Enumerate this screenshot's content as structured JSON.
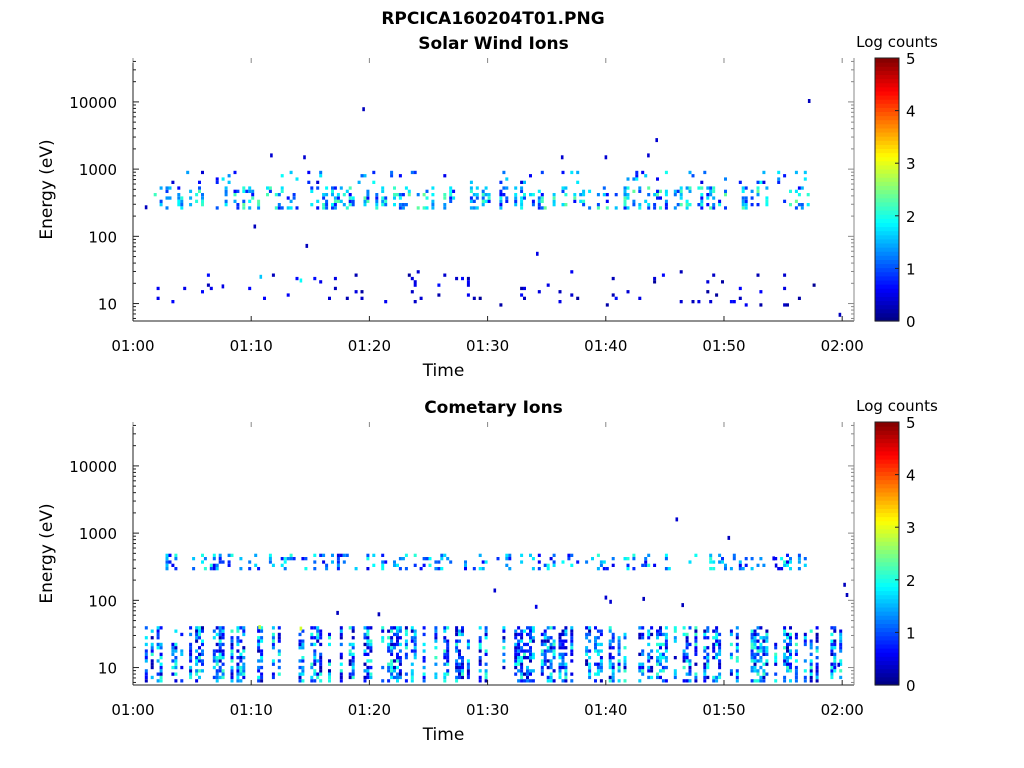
{
  "figure_title": "RPCICA160204T01.PNG",
  "colorbar": {
    "title": "Log counts",
    "ticks": [
      "0",
      "1",
      "2",
      "3",
      "4",
      "5"
    ]
  },
  "chart_data": [
    {
      "type": "heatmap",
      "title": "Solar Wind Ions",
      "xlabel": "Time",
      "ylabel": "Energy (eV)",
      "x_ticks": [
        "01:00",
        "01:10",
        "01:20",
        "01:30",
        "01:40",
        "01:50",
        "02:00"
      ],
      "y_ticks": [
        "10",
        "100",
        "1000",
        "10000"
      ],
      "y_scale": "log",
      "ylim": [
        5.5,
        45000
      ],
      "xlim_minutes": [
        0,
        61
      ],
      "color_range": [
        0,
        5
      ],
      "bands": [
        {
          "t0": 1.5,
          "t1": 58,
          "e_lo": 250,
          "e_hi": 500,
          "density": 0.45,
          "level": 1.5,
          "level_var": 0.9
        },
        {
          "t0": 2,
          "t1": 57,
          "e_lo": 600,
          "e_hi": 900,
          "density": 0.12,
          "level": 1.2,
          "level_var": 0.8
        },
        {
          "t0": 2,
          "t1": 58,
          "e_lo": 9,
          "e_hi": 30,
          "density": 0.06,
          "level": 0.4,
          "level_var": 0.3
        }
      ],
      "points": [
        {
          "t": 19.5,
          "e": 7800,
          "v": 0.3
        },
        {
          "t": 57.2,
          "e": 10300,
          "v": 0.3
        },
        {
          "t": 11.7,
          "e": 1600,
          "v": 0.4
        },
        {
          "t": 14.5,
          "e": 1500,
          "v": 0.4
        },
        {
          "t": 36.3,
          "e": 1500,
          "v": 0.4
        },
        {
          "t": 40,
          "e": 1500,
          "v": 0.4
        },
        {
          "t": 43.6,
          "e": 1600,
          "v": 0.4
        },
        {
          "t": 44.3,
          "e": 2700,
          "v": 0.4
        },
        {
          "t": 7.6,
          "e": 18,
          "v": 0.5
        },
        {
          "t": 10.8,
          "e": 25,
          "v": 1.6
        },
        {
          "t": 14.2,
          "e": 22,
          "v": 1.9
        },
        {
          "t": 34.2,
          "e": 55,
          "v": 0.5
        },
        {
          "t": 14.7,
          "e": 72,
          "v": 0.3
        },
        {
          "t": 10.3,
          "e": 140,
          "v": 0.3
        },
        {
          "t": 1.1,
          "e": 270,
          "v": 0.3
        },
        {
          "t": 59.8,
          "e": 6.8,
          "v": 0.3
        }
      ]
    },
    {
      "type": "heatmap",
      "title": "Cometary Ions",
      "xlabel": "Time",
      "ylabel": "Energy (eV)",
      "x_ticks": [
        "01:00",
        "01:10",
        "01:20",
        "01:30",
        "01:40",
        "01:50",
        "02:00"
      ],
      "y_ticks": [
        "10",
        "100",
        "1000",
        "10000"
      ],
      "y_scale": "log",
      "ylim": [
        5.5,
        45000
      ],
      "xlim_minutes": [
        0,
        61
      ],
      "color_range": [
        0,
        5
      ],
      "bands": [
        {
          "t0": 2,
          "t1": 57,
          "e_lo": 280,
          "e_hi": 480,
          "density": 0.35,
          "level": 1.3,
          "level_var": 0.8
        },
        {
          "t0": 1,
          "t1": 60,
          "e_lo": 6,
          "e_hi": 38,
          "density": 0.6,
          "level": 1.2,
          "level_var": 1.0
        }
      ],
      "points": [
        {
          "t": 46,
          "e": 1600,
          "v": 0.4
        },
        {
          "t": 50.4,
          "e": 850,
          "v": 0.3
        },
        {
          "t": 30.6,
          "e": 140,
          "v": 0.4
        },
        {
          "t": 40,
          "e": 110,
          "v": 0.4
        },
        {
          "t": 40.4,
          "e": 95,
          "v": 0.4
        },
        {
          "t": 43.2,
          "e": 105,
          "v": 0.3
        },
        {
          "t": 46.5,
          "e": 85,
          "v": 0.3
        },
        {
          "t": 17.3,
          "e": 65,
          "v": 0.3
        },
        {
          "t": 20.8,
          "e": 62,
          "v": 0.3
        },
        {
          "t": 34.1,
          "e": 80,
          "v": 0.5
        },
        {
          "t": 10.7,
          "e": 40,
          "v": 2.8
        },
        {
          "t": 14.2,
          "e": 38,
          "v": 2.9
        },
        {
          "t": 54.2,
          "e": 420,
          "v": 0.6
        },
        {
          "t": 54.4,
          "e": 330,
          "v": 0.5
        },
        {
          "t": 60.4,
          "e": 120,
          "v": 0.3
        },
        {
          "t": 60.2,
          "e": 170,
          "v": 0.3
        },
        {
          "t": 59.7,
          "e": 11,
          "v": 0.4
        }
      ]
    }
  ]
}
